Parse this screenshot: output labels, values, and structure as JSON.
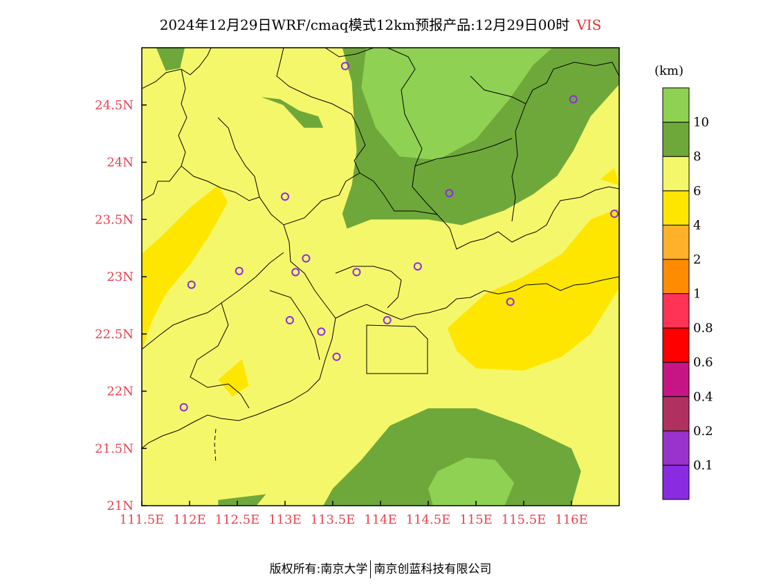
{
  "title": {
    "text": "2024年12月29日WRF/cmaq模式12km预报产品:12月29日00时",
    "variable": "VIS"
  },
  "chart_data": {
    "type": "map",
    "variable": "VIS",
    "unit_label": "(km)",
    "x_ticks": [
      "111.5E",
      "112E",
      "112.5E",
      "113E",
      "113.5E",
      "114E",
      "114.5E",
      "115E",
      "115.5E",
      "116E"
    ],
    "x_tick_values": [
      111.5,
      112.0,
      112.5,
      113.0,
      113.5,
      114.0,
      114.5,
      115.0,
      115.5,
      116.0
    ],
    "y_ticks": [
      "21N",
      "21.5N",
      "22N",
      "22.5N",
      "23N",
      "23.5N",
      "24N",
      "24.5N"
    ],
    "y_tick_values": [
      21.0,
      21.5,
      22.0,
      22.5,
      23.0,
      23.5,
      24.0,
      24.5
    ],
    "xlim": [
      111.5,
      116.5
    ],
    "ylim": [
      21.0,
      25.0
    ],
    "legend": {
      "boundary_labels": [
        "0.1",
        "0.2",
        "0.4",
        "0.6",
        "0.8",
        "1",
        "2",
        "4",
        "6",
        "8",
        "10"
      ],
      "colors_bottom_to_top": [
        "#8a2be2",
        "#9a32cd",
        "#b03060",
        "#c71585",
        "#ff0000",
        "#ff3355",
        "#ff8c00",
        "#ffb12a",
        "#ffe600",
        "#f5f76a",
        "#6fa83a",
        "#8fd152"
      ]
    },
    "stations": [
      {
        "lon": 113.63,
        "lat": 24.84
      },
      {
        "lon": 116.02,
        "lat": 24.55
      },
      {
        "lon": 113.0,
        "lat": 23.7
      },
      {
        "lon": 114.72,
        "lat": 23.73
      },
      {
        "lon": 116.45,
        "lat": 23.55
      },
      {
        "lon": 112.52,
        "lat": 23.05
      },
      {
        "lon": 113.22,
        "lat": 23.16
      },
      {
        "lon": 113.11,
        "lat": 23.04
      },
      {
        "lon": 113.75,
        "lat": 23.04
      },
      {
        "lon": 114.39,
        "lat": 23.09
      },
      {
        "lon": 112.02,
        "lat": 22.93
      },
      {
        "lon": 115.36,
        "lat": 22.78
      },
      {
        "lon": 113.05,
        "lat": 22.62
      },
      {
        "lon": 113.38,
        "lat": 22.52
      },
      {
        "lon": 114.07,
        "lat": 22.62
      },
      {
        "lon": 113.54,
        "lat": 22.3
      },
      {
        "lon": 111.94,
        "lat": 21.86
      }
    ],
    "fill_regions": [
      {
        "class": "8-10",
        "color": "#6fa83a",
        "points": [
          [
            113.6,
            25.0
          ],
          [
            116.5,
            25.0
          ],
          [
            116.5,
            24.68
          ],
          [
            116.2,
            24.4
          ],
          [
            116.02,
            24.1
          ],
          [
            115.85,
            23.88
          ],
          [
            115.6,
            23.72
          ],
          [
            115.3,
            23.58
          ],
          [
            114.85,
            23.45
          ],
          [
            114.5,
            23.5
          ],
          [
            114.2,
            23.5
          ],
          [
            113.9,
            23.5
          ],
          [
            113.65,
            23.42
          ],
          [
            113.6,
            23.55
          ],
          [
            113.7,
            23.8
          ],
          [
            113.75,
            24.1
          ],
          [
            113.72,
            24.4
          ],
          [
            113.7,
            24.7
          ]
        ]
      },
      {
        "class": ">10",
        "color": "#8fd152",
        "points": [
          [
            113.85,
            25.0
          ],
          [
            115.8,
            25.0
          ],
          [
            115.6,
            24.85
          ],
          [
            115.35,
            24.55
          ],
          [
            115.0,
            24.2
          ],
          [
            114.6,
            24.02
          ],
          [
            114.2,
            24.05
          ],
          [
            113.95,
            24.3
          ],
          [
            113.8,
            24.65
          ]
        ]
      },
      {
        "class": "8-10",
        "color": "#6fa83a",
        "points": [
          [
            113.4,
            21.0
          ],
          [
            116.0,
            21.0
          ],
          [
            116.1,
            21.3
          ],
          [
            116.0,
            21.5
          ],
          [
            115.5,
            21.7
          ],
          [
            115.0,
            21.85
          ],
          [
            114.5,
            21.85
          ],
          [
            114.1,
            21.7
          ],
          [
            113.8,
            21.4
          ],
          [
            113.5,
            21.15
          ]
        ]
      },
      {
        "class": ">10",
        "color": "#8fd152",
        "points": [
          [
            114.55,
            21.0
          ],
          [
            115.3,
            21.0
          ],
          [
            115.4,
            21.2
          ],
          [
            115.2,
            21.4
          ],
          [
            114.9,
            21.42
          ],
          [
            114.6,
            21.3
          ],
          [
            114.5,
            21.15
          ]
        ]
      },
      {
        "class": "8-10",
        "color": "#6fa83a",
        "points": [
          [
            112.3,
            21.0
          ],
          [
            112.7,
            21.0
          ],
          [
            112.8,
            21.1
          ],
          [
            112.5,
            21.07
          ],
          [
            112.3,
            21.05
          ]
        ]
      },
      {
        "class": "8-10",
        "color": "#6fa83a",
        "points": [
          [
            111.65,
            25.0
          ],
          [
            111.95,
            25.0
          ],
          [
            111.9,
            24.82
          ],
          [
            111.75,
            24.8
          ]
        ]
      },
      {
        "class": "8-10",
        "color": "#6fa83a",
        "points": [
          [
            112.75,
            24.57
          ],
          [
            112.98,
            24.5
          ],
          [
            113.2,
            24.3
          ],
          [
            113.4,
            24.3
          ],
          [
            113.35,
            24.4
          ],
          [
            113.15,
            24.45
          ],
          [
            112.95,
            24.55
          ]
        ]
      },
      {
        "class": "4-6",
        "color": "#ffe600",
        "points": [
          [
            111.5,
            22.35
          ],
          [
            111.6,
            22.6
          ],
          [
            111.75,
            22.85
          ],
          [
            112.0,
            23.1
          ],
          [
            112.2,
            23.35
          ],
          [
            112.4,
            23.65
          ],
          [
            112.3,
            23.8
          ],
          [
            112.0,
            23.6
          ],
          [
            111.7,
            23.35
          ],
          [
            111.5,
            23.2
          ]
        ]
      },
      {
        "class": "4-6",
        "color": "#ffe600",
        "points": [
          [
            114.7,
            22.55
          ],
          [
            115.1,
            22.85
          ],
          [
            115.5,
            23.0
          ],
          [
            115.9,
            23.2
          ],
          [
            116.2,
            23.5
          ],
          [
            116.5,
            23.6
          ],
          [
            116.5,
            22.9
          ],
          [
            116.2,
            22.5
          ],
          [
            115.9,
            22.3
          ],
          [
            115.5,
            22.18
          ],
          [
            115.0,
            22.2
          ],
          [
            114.8,
            22.35
          ]
        ]
      },
      {
        "class": "4-6",
        "color": "#ffe600",
        "points": [
          [
            112.3,
            22.1
          ],
          [
            112.55,
            22.28
          ],
          [
            112.62,
            22.05
          ],
          [
            112.45,
            21.95
          ]
        ]
      },
      {
        "class": "4-6",
        "color": "#ffe600",
        "points": [
          [
            116.3,
            23.85
          ],
          [
            116.45,
            23.95
          ],
          [
            116.5,
            23.8
          ]
        ]
      }
    ],
    "grid": false
  },
  "footer": {
    "left": "版权所有:南京大学",
    "right": "南京创蓝科技有限公司"
  }
}
